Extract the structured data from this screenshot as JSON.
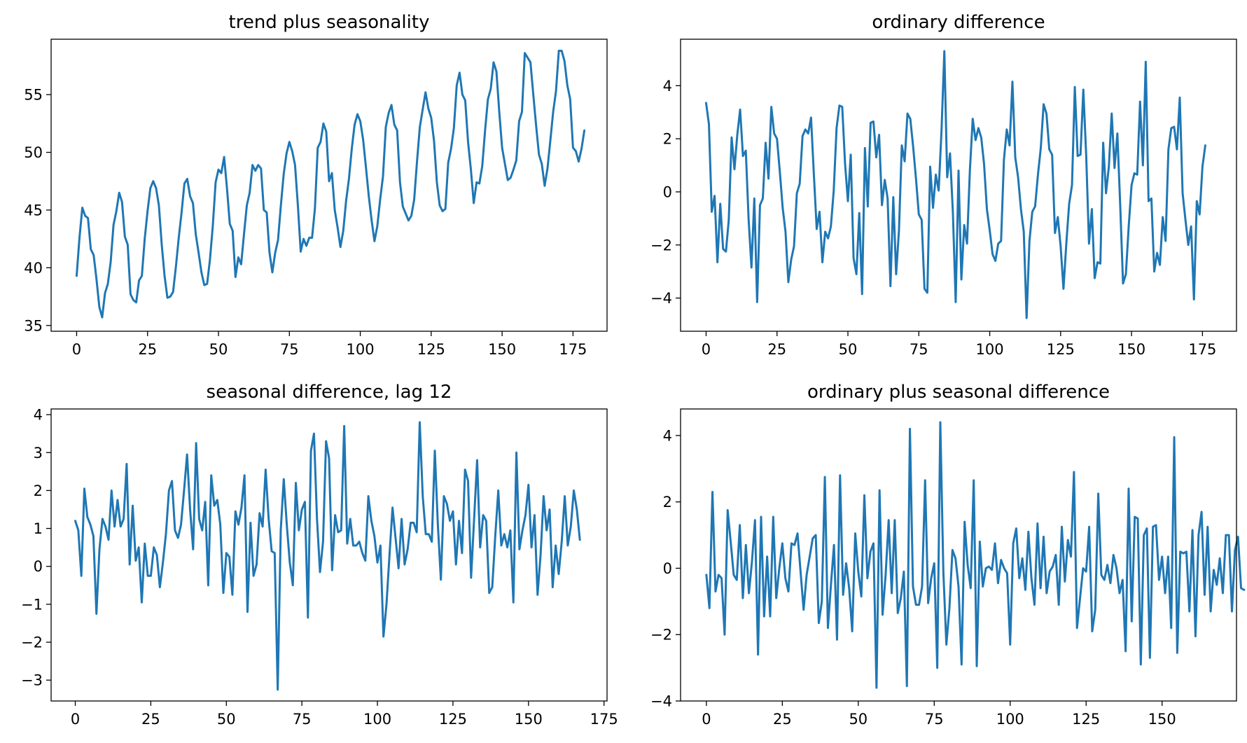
{
  "chart_data": [
    {
      "type": "line",
      "title": "trend plus seasonality",
      "xlim": [
        -9,
        187
      ],
      "ylim": [
        34.5,
        59.8
      ],
      "xticks": [
        0,
        25,
        50,
        75,
        100,
        125,
        150,
        175
      ],
      "yticks": [
        35,
        40,
        45,
        50,
        55
      ],
      "color": "#1f77b4",
      "values": [
        39.3,
        42.6,
        45.2,
        44.5,
        44.3,
        41.6,
        41.1,
        39.0,
        36.6,
        35.7,
        37.8,
        38.6,
        40.5,
        43.7,
        44.9,
        46.5,
        45.7,
        42.7,
        42.0,
        37.7,
        37.2,
        37.0,
        38.9,
        39.3,
        42.5,
        44.9,
        46.9,
        47.5,
        46.9,
        45.4,
        42.0,
        39.3,
        37.4,
        37.5,
        37.9,
        40.1,
        42.6,
        44.8,
        47.3,
        47.7,
        46.2,
        45.6,
        42.9,
        41.3,
        39.6,
        38.5,
        38.6,
        40.7,
        43.6,
        47.4,
        48.5,
        48.2,
        49.6,
        46.9,
        43.8,
        43.2,
        39.2,
        40.9,
        40.3,
        42.9,
        45.4,
        46.5,
        48.9,
        48.4,
        48.9,
        48.6,
        45.0,
        44.8,
        41.3,
        39.6,
        41.3,
        42.4,
        45.4,
        48.1,
        49.9,
        50.9,
        50.1,
        48.9,
        45.4,
        41.4,
        42.5,
        41.9,
        42.6,
        42.6,
        45.1,
        50.4,
        50.9,
        52.5,
        51.8,
        47.5,
        48.2,
        45.0,
        43.5,
        41.8,
        43.2,
        45.8,
        47.7,
        50.3,
        52.4,
        53.3,
        52.7,
        51.1,
        48.7,
        46.2,
        44.1,
        42.3,
        43.6,
        45.9,
        47.9,
        52.2,
        53.4,
        54.1,
        52.4,
        51.9,
        47.4,
        45.3,
        44.7,
        44.1,
        44.5,
        45.9,
        49.2,
        52.2,
        53.7,
        55.2,
        53.8,
        53.0,
        51.0,
        47.4,
        45.4,
        44.9,
        45.1,
        49.1,
        50.3,
        52.1,
        55.8,
        56.9,
        55.0,
        54.5,
        50.9,
        48.5,
        45.6,
        47.4,
        47.3,
        48.8,
        51.9,
        54.6,
        55.5,
        57.8,
        57.0,
        53.5,
        50.4,
        49.0,
        47.6,
        47.8,
        48.5,
        49.3,
        52.7,
        53.5,
        58.6,
        58.2,
        57.8,
        55.0,
        52.3,
        49.8,
        49.0,
        47.1,
        48.6,
        51.0,
        53.5,
        55.3,
        58.8,
        58.8,
        57.9,
        55.8,
        54.6,
        50.4,
        50.1,
        49.2,
        50.3,
        51.9
      ]
    },
    {
      "type": "line",
      "title": "ordinary difference",
      "xlim": [
        -9,
        187
      ],
      "ylim": [
        -5.25,
        5.75
      ],
      "xticks": [
        0,
        25,
        50,
        75,
        100,
        125,
        150,
        175
      ],
      "yticks": [
        -4,
        -2,
        0,
        2,
        4
      ],
      "color": "#1f77b4",
      "values": [
        3.35,
        2.55,
        -0.75,
        -0.15,
        -2.65,
        -0.45,
        -2.15,
        -2.25,
        -1.05,
        2.05,
        0.85,
        2.15,
        3.1,
        1.35,
        1.55,
        -1.05,
        -2.85,
        -0.25,
        -4.15,
        -0.5,
        -0.25,
        1.85,
        0.5,
        3.2,
        2.2,
        2.0,
        0.75,
        -0.6,
        -1.5,
        -3.4,
        -2.55,
        -2.05,
        -0.05,
        0.3,
        2.1,
        2.35,
        2.2,
        2.8,
        0.65,
        -1.4,
        -0.75,
        -2.65,
        -1.5,
        -1.75,
        -1.3,
        0.05,
        2.4,
        3.25,
        3.2,
        1.05,
        -0.35,
        1.4,
        -2.5,
        -3.1,
        -0.8,
        -3.85,
        1.65,
        -0.55,
        2.6,
        2.65,
        1.3,
        2.15,
        -0.5,
        0.45,
        -0.25,
        -3.55,
        -0.2,
        -3.1,
        -1.45,
        1.75,
        1.15,
        2.95,
        2.75,
        1.7,
        0.5,
        -0.85,
        -1.05,
        -3.65,
        -3.8,
        0.95,
        -0.6,
        0.65,
        0.05,
        2.3,
        5.3,
        0.55,
        1.45,
        -0.75,
        -4.15,
        0.8,
        -3.3,
        -1.25,
        -1.95,
        0.8,
        2.75,
        1.95,
        2.4,
        2.05,
        1.05,
        -0.65,
        -1.45,
        -2.35,
        -2.6,
        -1.95,
        -1.85,
        1.2,
        2.35,
        1.75,
        4.15,
        1.3,
        0.55,
        -0.65,
        -1.5,
        -4.75,
        -1.85,
        -0.75,
        -0.55,
        0.65,
        1.65,
        3.3,
        2.95,
        1.6,
        1.4,
        -1.55,
        -0.95,
        -2.05,
        -3.65,
        -1.95,
        -0.45,
        0.25,
        3.95,
        1.35,
        1.4,
        3.85,
        1.4,
        -1.95,
        -0.65,
        -3.25,
        -2.65,
        -2.7,
        1.85,
        -0.05,
        0.95,
        2.95,
        0.9,
        2.2,
        -0.5,
        -3.45,
        -3.1,
        -1.3,
        0.25,
        0.7,
        0.65,
        3.4,
        1.0,
        4.9,
        -0.35,
        -0.25,
        -3.0,
        -2.3,
        -2.75,
        -0.95,
        -1.85,
        1.6,
        2.4,
        2.45,
        1.6,
        3.55,
        -0.05,
        -1.05,
        -2.0,
        -1.3,
        -4.05,
        -0.35,
        -0.85,
        0.95,
        1.75
      ]
    },
    {
      "type": "line",
      "title": "seasonal difference, lag 12",
      "xlim": [
        -8,
        176
      ],
      "ylim": [
        -3.55,
        4.15
      ],
      "xticks": [
        0,
        25,
        50,
        75,
        100,
        125,
        150,
        175
      ],
      "yticks": [
        -3,
        -2,
        -1,
        0,
        1,
        2,
        3,
        4
      ],
      "color": "#1f77b4",
      "values": [
        1.2,
        0.95,
        -0.25,
        2.05,
        1.3,
        1.1,
        0.8,
        -1.25,
        0.45,
        1.25,
        1.05,
        0.7,
        2.0,
        1.05,
        1.75,
        1.05,
        1.25,
        2.7,
        0.05,
        1.6,
        0.15,
        0.5,
        -0.95,
        0.6,
        -0.25,
        -0.25,
        0.5,
        0.3,
        -0.55,
        0.1,
        0.85,
        2.0,
        2.25,
        0.95,
        0.75,
        1.1,
        2.0,
        2.95,
        1.5,
        0.45,
        3.25,
        1.25,
        0.95,
        1.7,
        -0.5,
        2.4,
        1.6,
        1.75,
        1.1,
        -0.7,
        0.35,
        0.25,
        -0.75,
        1.45,
        1.1,
        1.55,
        2.4,
        -1.2,
        1.15,
        -0.25,
        0.05,
        1.4,
        1.05,
        2.55,
        1.25,
        0.4,
        0.35,
        -3.25,
        0.95,
        2.3,
        1.1,
        0.1,
        -0.5,
        2.2,
        0.95,
        1.5,
        1.7,
        -1.35,
        3.05,
        3.5,
        1.25,
        -0.15,
        0.65,
        3.3,
        2.85,
        -0.1,
        1.35,
        0.9,
        0.95,
        3.7,
        0.6,
        1.25,
        0.55,
        0.55,
        0.65,
        0.35,
        0.15,
        1.85,
        1.2,
        0.8,
        0.1,
        0.55,
        -1.85,
        -1.0,
        0.3,
        1.55,
        0.75,
        -0.05,
        1.25,
        0.05,
        0.45,
        1.15,
        1.15,
        0.9,
        3.8,
        1.85,
        0.85,
        0.85,
        0.65,
        3.05,
        1.1,
        -0.35,
        1.85,
        1.65,
        1.2,
        1.45,
        0.05,
        1.2,
        0.35,
        2.55,
        2.25,
        -0.3,
        1.25,
        2.8,
        0.5,
        1.35,
        1.2,
        -0.7,
        -0.55,
        0.8,
        2.0,
        0.55,
        0.85,
        0.5,
        0.95,
        -0.95,
        3.0,
        0.45,
        0.95,
        1.35,
        2.15,
        0.5,
        1.35,
        -0.75,
        0.3,
        1.85,
        0.95,
        1.5,
        -0.55,
        0.55,
        -0.2,
        0.65,
        1.85,
        0.55,
        1.05,
        2.0,
        1.5,
        0.7
      ]
    },
    {
      "type": "line",
      "title": "ordinary plus seasonal difference",
      "xlim": [
        -8.5,
        174.5
      ],
      "ylim": [
        -4.0,
        4.8
      ],
      "xticks": [
        0,
        25,
        50,
        75,
        100,
        125,
        150
      ],
      "yticks": [
        -4,
        -2,
        0,
        2,
        4
      ],
      "color": "#1f77b4",
      "values": [
        -0.2,
        -1.2,
        2.3,
        -0.7,
        -0.2,
        -0.3,
        -2.0,
        1.75,
        0.8,
        -0.2,
        -0.35,
        1.3,
        -0.9,
        0.7,
        -0.75,
        0.2,
        1.45,
        -2.6,
        1.55,
        -1.45,
        0.35,
        -1.45,
        1.55,
        -0.9,
        0.0,
        0.75,
        -0.3,
        -0.7,
        0.75,
        0.7,
        1.05,
        -0.1,
        -1.25,
        -0.2,
        0.35,
        0.9,
        1.0,
        -1.65,
        -1.0,
        2.75,
        -1.8,
        -0.5,
        0.7,
        -2.15,
        2.8,
        -0.8,
        0.15,
        -0.6,
        -1.9,
        1.05,
        -0.1,
        -0.85,
        2.2,
        -0.3,
        0.5,
        0.75,
        -3.6,
        2.35,
        -1.4,
        -0.2,
        1.45,
        -0.75,
        1.45,
        -1.35,
        -0.9,
        -0.1,
        -3.55,
        4.2,
        -0.55,
        -1.1,
        -1.1,
        -0.55,
        2.65,
        -1.05,
        -0.3,
        0.15,
        -3.0,
        4.4,
        -0.1,
        -2.3,
        -1.2,
        0.55,
        0.3,
        -0.55,
        -2.9,
        1.4,
        0.1,
        -0.6,
        2.65,
        -2.95,
        0.8,
        -0.55,
        0.0,
        0.05,
        -0.05,
        0.75,
        -0.45,
        0.25,
        0.0,
        -0.15,
        -2.3,
        0.75,
        1.2,
        -0.3,
        0.3,
        -0.65,
        1.1,
        -0.3,
        -1.1,
        1.35,
        -0.6,
        0.95,
        -0.75,
        -0.1,
        0.05,
        0.4,
        -1.1,
        1.25,
        -0.4,
        0.85,
        0.35,
        2.9,
        -1.8,
        -0.9,
        0.0,
        -0.1,
        1.25,
        -1.9,
        -1.25,
        2.25,
        -0.2,
        -0.35,
        0.1,
        -0.45,
        0.4,
        0.0,
        -0.75,
        -0.35,
        -2.5,
        2.4,
        -1.6,
        1.55,
        1.5,
        -2.9,
        1.0,
        1.2,
        -2.7,
        1.25,
        1.3,
        -0.35,
        0.35,
        -0.75,
        0.35,
        -1.8,
        3.95,
        -2.55,
        0.5,
        0.45,
        0.5,
        -1.3,
        1.15,
        -2.05,
        1.0,
        1.7,
        -0.8,
        1.25,
        -1.3,
        -0.05,
        -0.5,
        0.3,
        -0.75,
        1.0,
        1.0,
        -1.3,
        0.55,
        0.95,
        -0.6,
        -0.65
      ]
    }
  ]
}
